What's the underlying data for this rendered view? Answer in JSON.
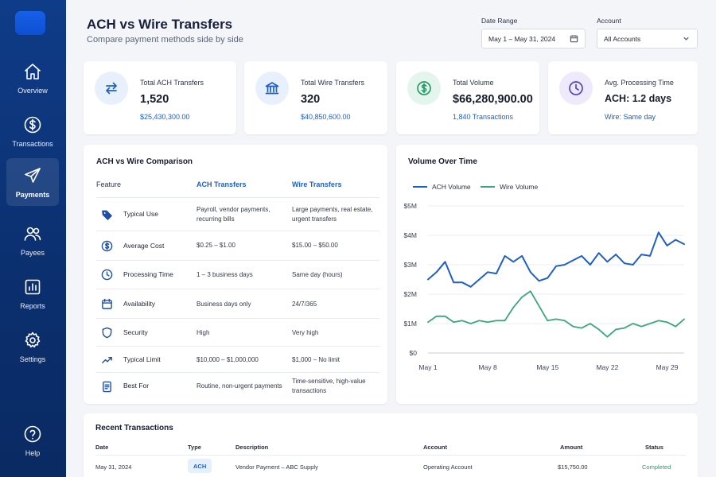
{
  "sidebar": {
    "items": [
      {
        "label": "Overview",
        "icon": "home-icon"
      },
      {
        "label": "Transactions",
        "icon": "dollar-circle-icon"
      },
      {
        "label": "Payments",
        "icon": "paper-plane-icon",
        "active": true
      },
      {
        "label": "Payees",
        "icon": "users-icon"
      },
      {
        "label": "Reports",
        "icon": "bar-chart-icon"
      },
      {
        "label": "Settings",
        "icon": "gear-icon"
      }
    ],
    "help": {
      "label": "Help",
      "icon": "help-circle-icon"
    }
  },
  "header": {
    "title": "ACH vs Wire Transfers",
    "subtitle": "Compare payment methods side by side",
    "date_range": {
      "label": "Date Range",
      "value": "May 1 – May 31, 2024"
    },
    "account": {
      "label": "Account",
      "value": "All Accounts"
    }
  },
  "kpis": [
    {
      "label": "Total ACH Transfers",
      "value": "1,520",
      "sub": "$25,430,300.00",
      "icon": "swap-arrows-icon",
      "color": "#1f5fc8",
      "bg": "#e8f0fc"
    },
    {
      "label": "Total Wire Transfers",
      "value": "320",
      "sub": "$40,850,600.00",
      "icon": "bank-icon",
      "color": "#1f5fc8",
      "bg": "#e8f0fc"
    },
    {
      "label": "Total Volume",
      "value": "$66,280,900.00",
      "sub": "1,840 Transactions",
      "icon": "dollar-circle-icon",
      "color": "#2a9a6a",
      "bg": "#e3f5ec"
    },
    {
      "label": "Avg. Processing Time",
      "value": "ACH: 1.2 days",
      "sub": "Wire: Same day",
      "icon": "clock-icon",
      "color": "#5b45b8",
      "bg": "#eeeafb"
    }
  ],
  "comparison": {
    "title": "ACH vs Wire Comparison",
    "headers": {
      "feature": "Feature",
      "ach": "ACH Transfers",
      "wire": "Wire Transfers"
    },
    "rows": [
      {
        "feature": "Typical Use",
        "icon": "tag-icon",
        "ach": "Payroll, vendor payments, recurring bills",
        "wire": "Large payments, real estate, urgent transfers"
      },
      {
        "feature": "Average Cost",
        "icon": "dollar-circle-icon",
        "ach": "$0.25 – $1.00",
        "wire": "$15.00 – $50.00"
      },
      {
        "feature": "Processing Time",
        "icon": "clock-icon",
        "ach": "1 – 3 business days",
        "wire": "Same day (hours)"
      },
      {
        "feature": "Availability",
        "icon": "calendar-icon",
        "ach": "Business days only",
        "wire": "24/7/365"
      },
      {
        "feature": "Security",
        "icon": "shield-icon",
        "ach": "High",
        "wire": "Very high"
      },
      {
        "feature": "Typical Limit",
        "icon": "trend-icon",
        "ach": "$10,000 – $1,000,000",
        "wire": "$1,000 – No limit"
      },
      {
        "feature": "Best For",
        "icon": "document-icon",
        "ach": "Routine, non-urgent payments",
        "wire": "Time-sensitive, high-value transactions"
      }
    ]
  },
  "chart_data": {
    "type": "line",
    "title": "Volume Over Time",
    "x": [
      "May 1",
      "May 2",
      "May 3",
      "May 4",
      "May 5",
      "May 6",
      "May 7",
      "May 8",
      "May 9",
      "May 10",
      "May 11",
      "May 12",
      "May 13",
      "May 14",
      "May 15",
      "May 16",
      "May 17",
      "May 18",
      "May 19",
      "May 20",
      "May 21",
      "May 22",
      "May 23",
      "May 24",
      "May 25",
      "May 26",
      "May 27",
      "May 28",
      "May 29",
      "May 30",
      "May 31"
    ],
    "x_tick_labels": [
      "May 1",
      "May 8",
      "May 15",
      "May 22",
      "May 29"
    ],
    "x_tick_index": [
      0,
      7,
      14,
      21,
      28
    ],
    "y_tick_labels": [
      "$0",
      "$1M",
      "$2M",
      "$3M",
      "$4M",
      "$5M"
    ],
    "ylim": [
      0,
      5000000
    ],
    "grid": true,
    "legend": "top-left",
    "series": [
      {
        "name": "ACH Volume",
        "color": "#1f5fc8",
        "values": [
          2500000,
          2750000,
          3100000,
          2400000,
          2400000,
          2250000,
          2500000,
          2750000,
          2700000,
          3300000,
          3100000,
          3300000,
          2750000,
          2450000,
          2550000,
          2950000,
          3000000,
          3150000,
          3300000,
          3000000,
          3400000,
          3100000,
          3350000,
          3050000,
          3000000,
          3350000,
          3300000,
          4100000,
          3650000,
          3850000,
          3700000
        ]
      },
      {
        "name": "Wire Volume",
        "color": "#3aa77a",
        "values": [
          1050000,
          1250000,
          1250000,
          1050000,
          1100000,
          1000000,
          1100000,
          1050000,
          1100000,
          1100000,
          1550000,
          1900000,
          2100000,
          1600000,
          1100000,
          1150000,
          1100000,
          900000,
          850000,
          1000000,
          800000,
          550000,
          800000,
          850000,
          1000000,
          900000,
          1000000,
          1100000,
          1050000,
          900000,
          1150000
        ]
      }
    ]
  },
  "transactions": {
    "title": "Recent Transactions",
    "headers": {
      "date": "Date",
      "type": "Type",
      "description": "Description",
      "account": "Account",
      "amount": "Amount",
      "status": "Status"
    },
    "rows": [
      {
        "date": "May 31, 2024",
        "type": "ACH",
        "description": "Vendor Payment – ABC Supply",
        "account": "Operating Account",
        "amount": "$15,750.00",
        "status": "Completed",
        "status_color": "#2a9a6a"
      }
    ]
  }
}
